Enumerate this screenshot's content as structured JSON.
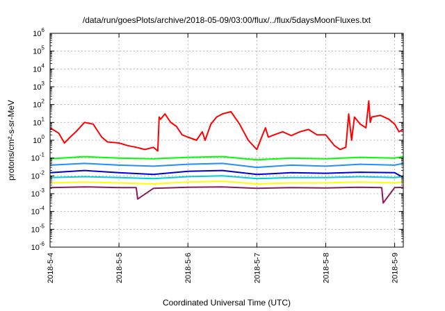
{
  "chart_data": {
    "type": "line",
    "title": "/data/run/goesPlots/archive/2018-05-09/03:00/flux/../flux/5daysMoonFluxes.txt",
    "xlabel": "Coordinated Universal Time (UTC)",
    "ylabel": "protons/cm²-s-sr-MeV",
    "yscale": "log",
    "ylim": [
      1e-06,
      1000000.0
    ],
    "xlim": [
      "2018-05-04T00:00",
      "2018-05-09T03:00"
    ],
    "grid": true,
    "legend": "none",
    "x_ticks": [
      {
        "value": "2018-05-04T00:00",
        "label": "2018-5-4"
      },
      {
        "value": "2018-05-05T00:00",
        "label": "2018-5-5"
      },
      {
        "value": "2018-05-06T00:00",
        "label": "2018-5-6"
      },
      {
        "value": "2018-05-07T00:00",
        "label": "2018-5-7"
      },
      {
        "value": "2018-05-08T00:00",
        "label": "2018-5-8"
      },
      {
        "value": "2018-05-09T00:00",
        "label": "2018-5-9"
      }
    ],
    "y_ticks": [
      {
        "exp": 6,
        "base": "10",
        "sup": "6"
      },
      {
        "exp": 5,
        "base": "10",
        "sup": "5"
      },
      {
        "exp": 4,
        "base": "10",
        "sup": "4"
      },
      {
        "exp": 3,
        "base": "10",
        "sup": "3"
      },
      {
        "exp": 2,
        "base": "10",
        "sup": "2"
      },
      {
        "exp": 1,
        "base": "10",
        "sup": "1"
      },
      {
        "exp": 0,
        "base": "10",
        "sup": "0"
      },
      {
        "exp": -1,
        "base": "10",
        "sup": "-1"
      },
      {
        "exp": -2,
        "base": "10",
        "sup": "-2"
      },
      {
        "exp": -3,
        "base": "10",
        "sup": "-3"
      },
      {
        "exp": -4,
        "base": "10",
        "sup": "-4"
      },
      {
        "exp": -5,
        "base": "10",
        "sup": "-5"
      },
      {
        "exp": -6,
        "base": "10",
        "sup": "-6"
      }
    ],
    "series": [
      {
        "color": "#ff0000",
        "width": 2,
        "x": [
          "2018-05-04T00:00",
          "2018-05-04T03:00",
          "2018-05-04T05:00",
          "2018-05-04T07:00",
          "2018-05-04T09:00",
          "2018-05-04T12:00",
          "2018-05-04T15:00",
          "2018-05-04T18:00",
          "2018-05-04T20:00",
          "2018-05-05T00:00",
          "2018-05-05T03:00",
          "2018-05-05T06:00",
          "2018-05-05T09:00",
          "2018-05-05T12:00",
          "2018-05-05T13:30",
          "2018-05-05T14:00",
          "2018-05-05T14:30",
          "2018-05-05T16:00",
          "2018-05-05T18:00",
          "2018-05-05T20:00",
          "2018-05-05T22:00",
          "2018-05-06T00:00",
          "2018-05-06T03:00",
          "2018-05-06T05:00",
          "2018-05-06T06:00",
          "2018-05-06T08:00",
          "2018-05-06T10:00",
          "2018-05-06T12:00",
          "2018-05-06T15:00",
          "2018-05-06T18:00",
          "2018-05-06T21:00",
          "2018-05-07T00:00",
          "2018-05-07T02:00",
          "2018-05-07T03:00",
          "2018-05-07T04:00",
          "2018-05-07T06:00",
          "2018-05-07T09:00",
          "2018-05-07T12:00",
          "2018-05-07T15:00",
          "2018-05-07T18:00",
          "2018-05-07T21:00",
          "2018-05-08T00:00",
          "2018-05-08T03:00",
          "2018-05-08T05:00",
          "2018-05-08T07:00",
          "2018-05-08T08:00",
          "2018-05-08T09:00",
          "2018-05-08T10:00",
          "2018-05-08T12:00",
          "2018-05-08T14:00",
          "2018-05-08T15:00",
          "2018-05-08T15:30",
          "2018-05-08T16:00",
          "2018-05-08T19:00",
          "2018-05-08T22:00",
          "2018-05-09T00:00",
          "2018-05-09T01:30",
          "2018-05-09T03:00"
        ],
        "y": [
          5,
          2.5,
          0.7,
          1.5,
          3,
          10,
          8,
          1.5,
          0.8,
          0.7,
          0.5,
          0.4,
          0.3,
          0.4,
          0.25,
          20,
          15,
          30,
          10,
          6,
          2,
          1.5,
          1,
          3,
          1,
          8,
          20,
          30,
          40,
          8,
          1,
          0.3,
          2,
          5,
          1.5,
          2,
          3,
          1.8,
          3,
          4,
          2,
          2,
          0.5,
          0.3,
          0.4,
          30,
          1,
          20,
          8,
          5,
          160,
          10,
          20,
          25,
          15,
          8,
          3,
          4
        ]
      },
      {
        "color": "#00ff00",
        "width": 2,
        "x": [
          "2018-05-04T00:00",
          "2018-05-04T12:00",
          "2018-05-05T00:00",
          "2018-05-05T12:00",
          "2018-05-06T00:00",
          "2018-05-06T12:00",
          "2018-05-07T00:00",
          "2018-05-07T12:00",
          "2018-05-08T00:00",
          "2018-05-08T12:00",
          "2018-05-09T00:00",
          "2018-05-09T03:00"
        ],
        "y": [
          0.09,
          0.12,
          0.1,
          0.09,
          0.11,
          0.12,
          0.08,
          0.1,
          0.09,
          0.11,
          0.1,
          0.12
        ]
      },
      {
        "color": "#1e90ff",
        "width": 2,
        "x": [
          "2018-05-04T00:00",
          "2018-05-04T12:00",
          "2018-05-05T00:00",
          "2018-05-05T12:00",
          "2018-05-06T00:00",
          "2018-05-06T12:00",
          "2018-05-07T00:00",
          "2018-05-07T12:00",
          "2018-05-08T00:00",
          "2018-05-08T12:00",
          "2018-05-09T00:00",
          "2018-05-09T03:00"
        ],
        "y": [
          0.04,
          0.05,
          0.04,
          0.035,
          0.045,
          0.05,
          0.03,
          0.04,
          0.035,
          0.045,
          0.04,
          0.05
        ]
      },
      {
        "color": "#0000cd",
        "width": 2,
        "x": [
          "2018-05-04T00:00",
          "2018-05-04T12:00",
          "2018-05-05T00:00",
          "2018-05-05T12:00",
          "2018-05-06T00:00",
          "2018-05-06T12:00",
          "2018-05-07T00:00",
          "2018-05-07T12:00",
          "2018-05-08T00:00",
          "2018-05-08T12:00",
          "2018-05-09T00:00",
          "2018-05-09T03:00"
        ],
        "y": [
          0.015,
          0.02,
          0.015,
          0.012,
          0.018,
          0.02,
          0.012,
          0.015,
          0.014,
          0.016,
          0.015,
          0.008
        ]
      },
      {
        "color": "#00ced1",
        "width": 2,
        "x": [
          "2018-05-04T00:00",
          "2018-05-04T12:00",
          "2018-05-05T00:00",
          "2018-05-05T12:00",
          "2018-05-06T00:00",
          "2018-05-06T12:00",
          "2018-05-07T00:00",
          "2018-05-07T12:00",
          "2018-05-08T00:00",
          "2018-05-08T12:00",
          "2018-05-09T00:00",
          "2018-05-09T03:00"
        ],
        "y": [
          0.008,
          0.009,
          0.008,
          0.007,
          0.009,
          0.01,
          0.007,
          0.008,
          0.008,
          0.009,
          0.008,
          0.009
        ]
      },
      {
        "color": "#ffff00",
        "width": 2,
        "x": [
          "2018-05-04T00:00",
          "2018-05-04T12:00",
          "2018-05-05T00:00",
          "2018-05-05T12:00",
          "2018-05-06T00:00",
          "2018-05-06T12:00",
          "2018-05-07T00:00",
          "2018-05-07T12:00",
          "2018-05-08T00:00",
          "2018-05-08T12:00",
          "2018-05-09T00:00",
          "2018-05-09T03:00"
        ],
        "y": [
          0.004,
          0.0045,
          0.004,
          0.0035,
          0.0045,
          0.005,
          0.0035,
          0.004,
          0.004,
          0.0045,
          0.004,
          0.0045
        ]
      },
      {
        "color": "#8b1a5c",
        "width": 2,
        "x": [
          "2018-05-04T00:00",
          "2018-05-04T12:00",
          "2018-05-05T00:00",
          "2018-05-05T06:00",
          "2018-05-05T06:30",
          "2018-05-05T12:00",
          "2018-05-06T00:00",
          "2018-05-06T12:00",
          "2018-05-07T00:00",
          "2018-05-07T12:00",
          "2018-05-08T00:00",
          "2018-05-08T12:00",
          "2018-05-08T19:30",
          "2018-05-08T20:00",
          "2018-05-09T00:00",
          "2018-05-09T03:00"
        ],
        "y": [
          0.0022,
          0.0024,
          0.0022,
          0.0022,
          0.0005,
          0.002,
          0.0023,
          0.0024,
          0.002,
          0.0022,
          0.0021,
          0.0023,
          0.0022,
          0.0003,
          0.0022,
          0.0023
        ]
      }
    ]
  }
}
